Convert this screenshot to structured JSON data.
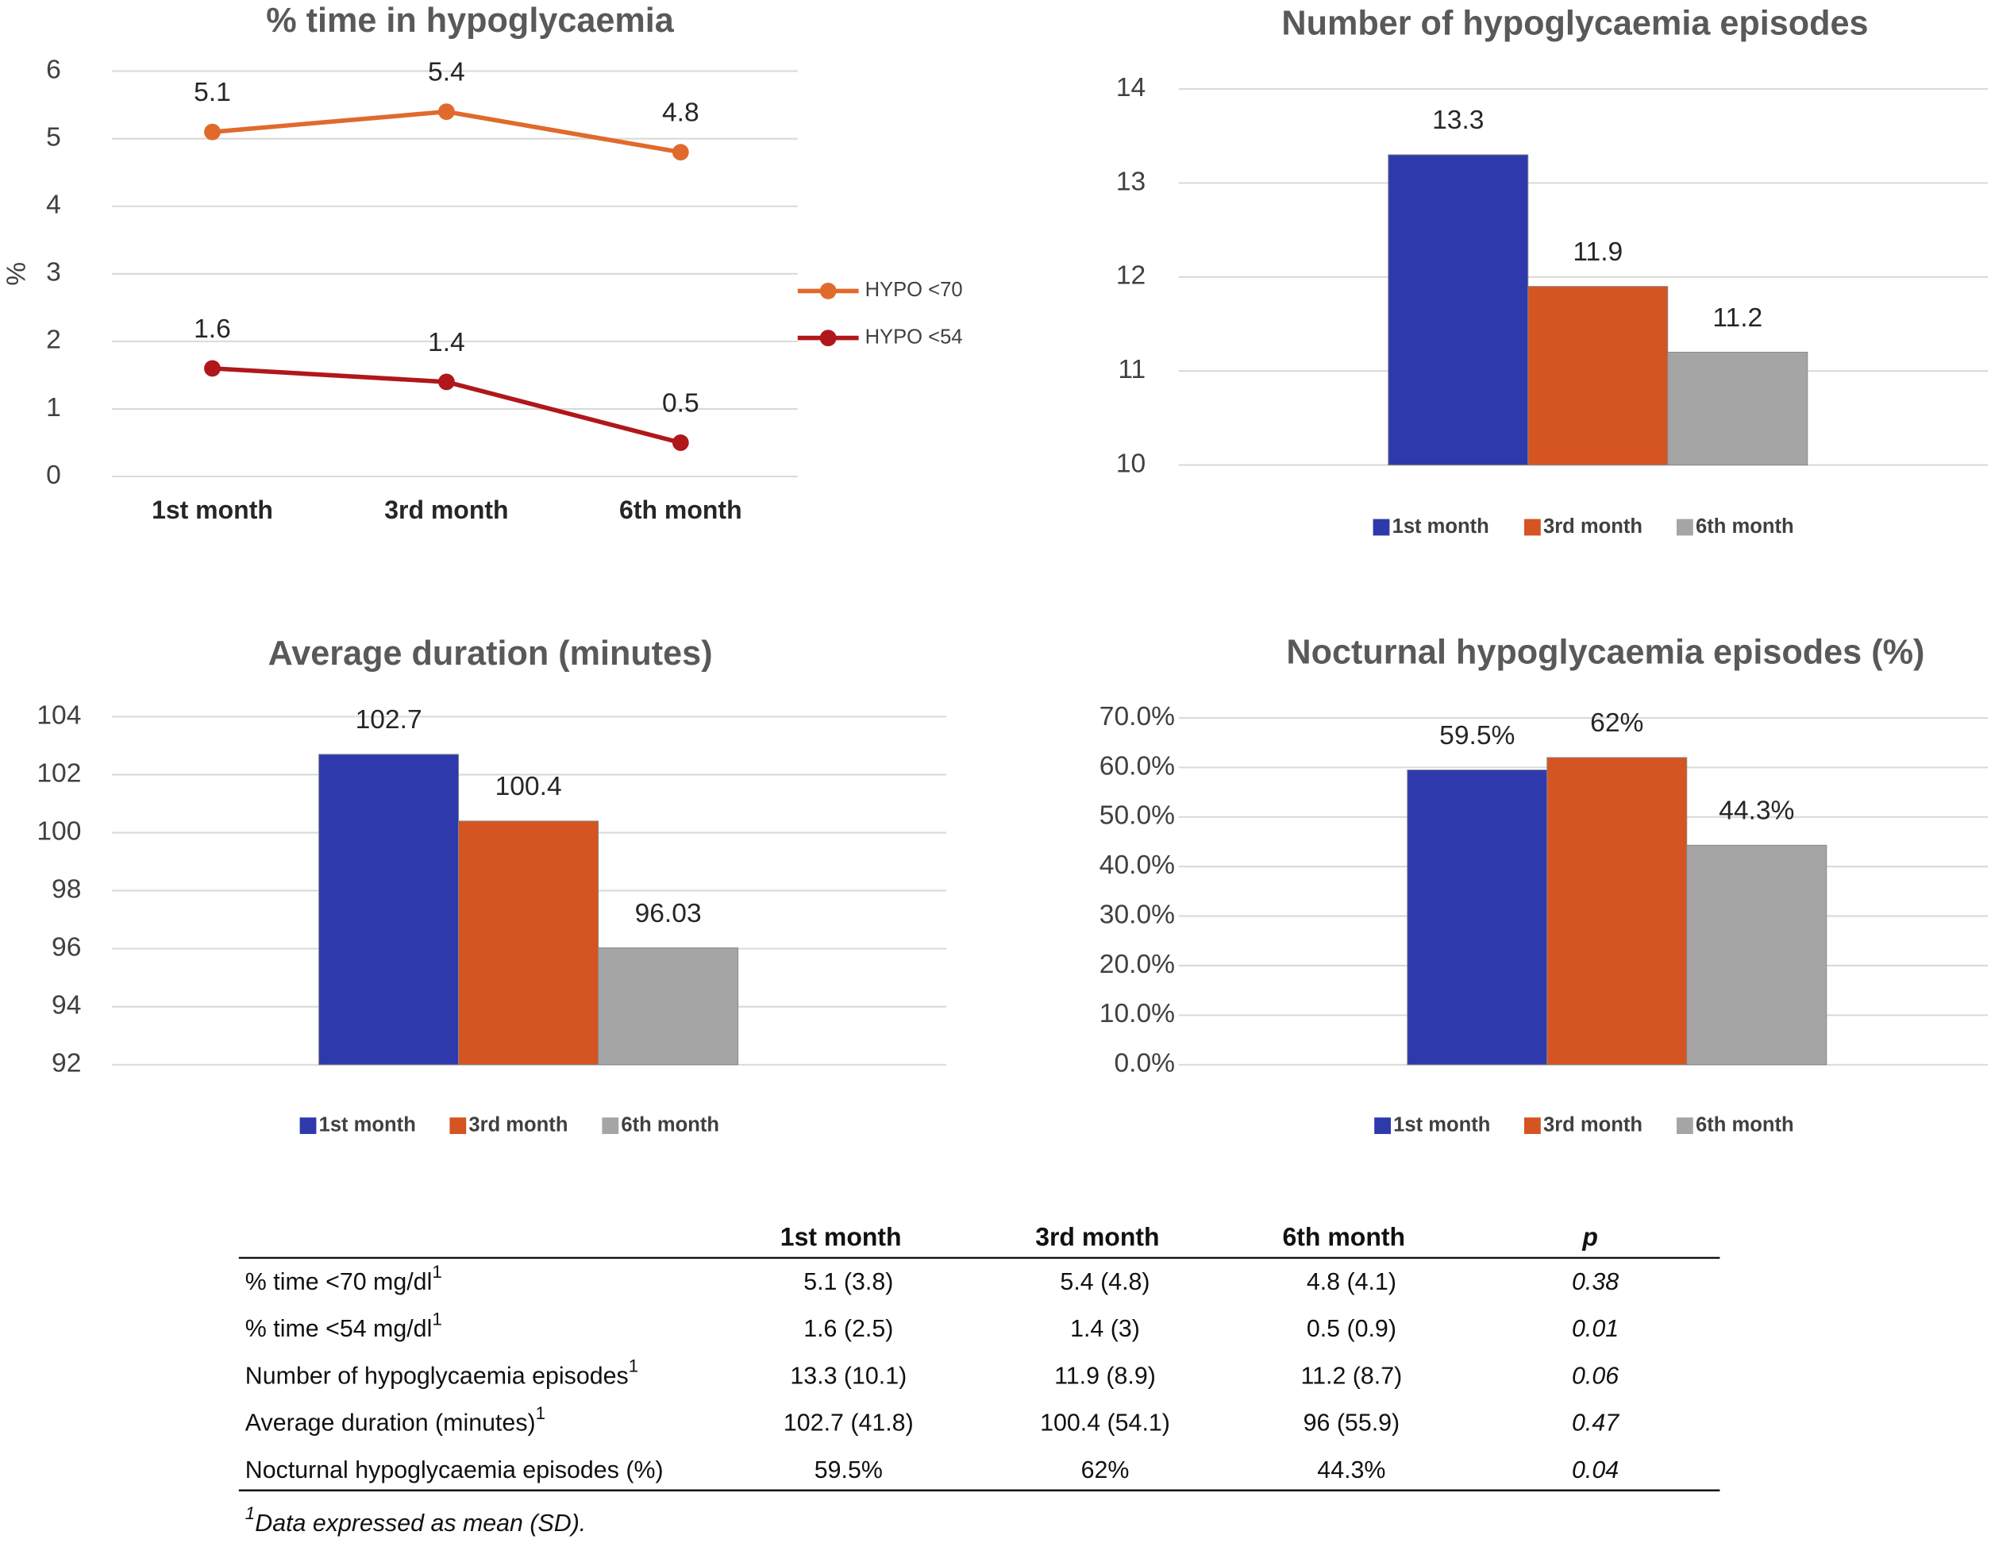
{
  "chart_data": [
    {
      "type": "line",
      "title": "% time in hypoglycaemia",
      "y_label": "%",
      "categories": [
        "1st month",
        "3rd month",
        "6th month"
      ],
      "series": [
        {
          "name": "HYPO <70",
          "color": "#e06a2c",
          "values": [
            5.1,
            5.4,
            4.8
          ]
        },
        {
          "name": "HYPO <54",
          "color": "#b0171b",
          "values": [
            1.6,
            1.4,
            0.5
          ]
        }
      ],
      "ylim": [
        0,
        6
      ],
      "yticks": [
        0,
        1,
        2,
        3,
        4,
        5,
        6
      ],
      "grid": true,
      "legend": "right"
    },
    {
      "type": "bar",
      "title": "Number of hypoglycaemia episodes",
      "categories": [
        "1st month",
        "3rd month",
        "6th month"
      ],
      "values": [
        13.3,
        11.9,
        11.2
      ],
      "colors": [
        "#2e3aab",
        "#d45422",
        "#a5a5a5"
      ],
      "ylim": [
        10,
        14
      ],
      "yticks": [
        10,
        11,
        12,
        13,
        14
      ],
      "grid": true,
      "legend": "bottom"
    },
    {
      "type": "bar",
      "title": "Average duration (minutes)",
      "categories": [
        "1st month",
        "3rd month",
        "6th month"
      ],
      "values": [
        102.7,
        100.4,
        96.03
      ],
      "colors": [
        "#2e3aab",
        "#d45422",
        "#a5a5a5"
      ],
      "ylim": [
        92,
        104
      ],
      "yticks": [
        92,
        94,
        96,
        98,
        100,
        102,
        104
      ],
      "grid": true,
      "legend": "bottom"
    },
    {
      "type": "bar",
      "title": "Nocturnal hypoglycaemia episodes (%)",
      "categories": [
        "1st month",
        "3rd month",
        "6th month"
      ],
      "values": [
        59.5,
        62,
        44.3
      ],
      "value_labels": [
        "59.5%",
        "62%",
        "44.3%"
      ],
      "colors": [
        "#2e3aab",
        "#d45422",
        "#a5a5a5"
      ],
      "ylim": [
        0,
        70
      ],
      "yticks": [
        {
          "value": 0,
          "label": "0.0%"
        },
        {
          "value": 10,
          "label": "10.0%"
        },
        {
          "value": 20,
          "label": "20.0%"
        },
        {
          "value": 30,
          "label": "30.0%"
        },
        {
          "value": 40,
          "label": "40.0%"
        },
        {
          "value": 50,
          "label": "50.0%"
        },
        {
          "value": 60,
          "label": "60.0%"
        },
        {
          "value": 70,
          "label": "70.0%"
        }
      ],
      "grid": true,
      "legend": "bottom"
    }
  ],
  "table": {
    "columns": [
      "1st month",
      "3rd month",
      "6th month",
      "p"
    ],
    "rows": [
      {
        "label": "% time <70 mg/dl",
        "note": "1",
        "cells": [
          "5.1 (3.8)",
          "5.4 (4.8)",
          "4.8 (4.1)"
        ],
        "p": "0.38"
      },
      {
        "label": "% time <54 mg/dl",
        "note": "1",
        "cells": [
          "1.6 (2.5)",
          "1.4 (3)",
          "0.5 (0.9)"
        ],
        "p": "0.01"
      },
      {
        "label": "Number of hypoglycaemia episodes",
        "note": "1",
        "cells": [
          "13.3 (10.1)",
          "11.9 (8.9)",
          "11.2 (8.7)"
        ],
        "p": "0.06"
      },
      {
        "label": "Average duration (minutes)",
        "note": "1",
        "cells": [
          "102.7 (41.8)",
          "100.4 (54.1)",
          "96 (55.9)"
        ],
        "p": "0.47"
      },
      {
        "label": "Nocturnal hypoglycaemia episodes (%)",
        "cells": [
          "59.5%",
          "62%",
          "44.3%"
        ],
        "p": "0.04"
      }
    ],
    "footnote": {
      "mark": "1",
      "text": "Data expressed as mean (SD)."
    }
  }
}
